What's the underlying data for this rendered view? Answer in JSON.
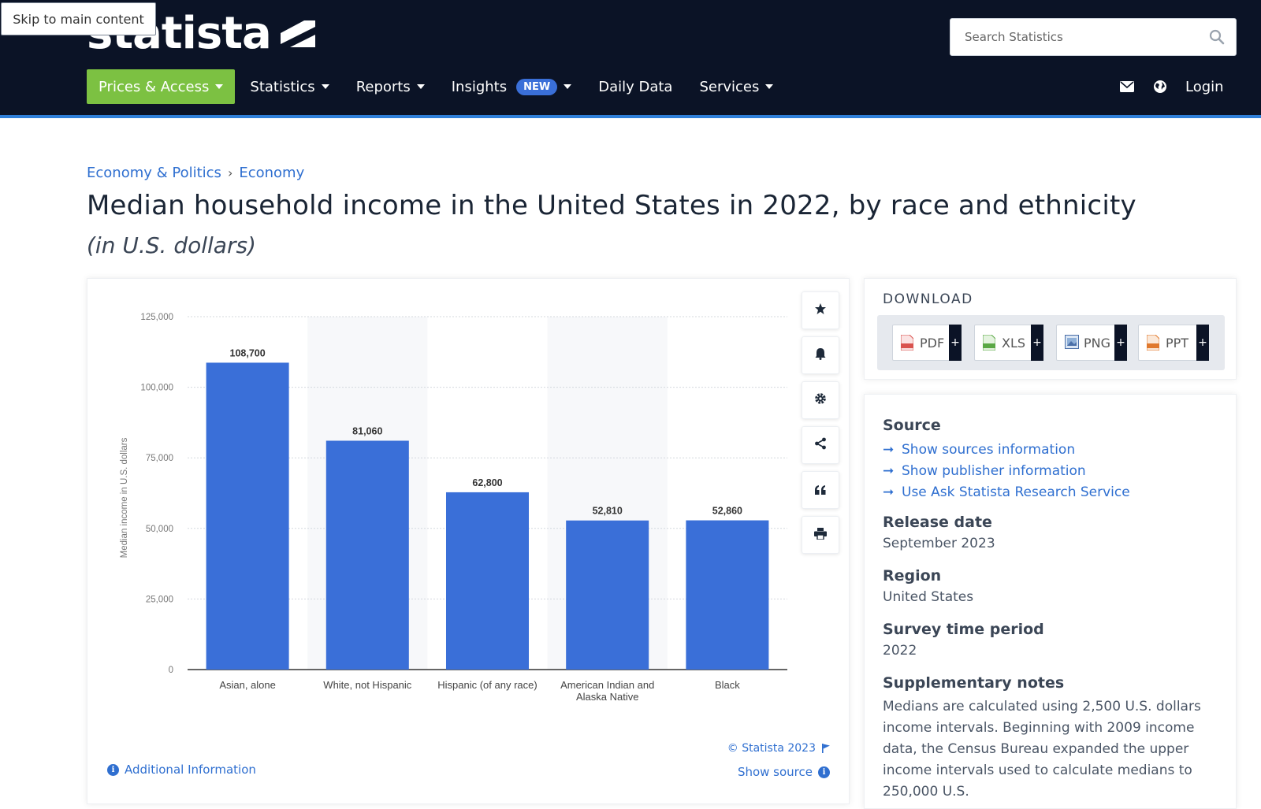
{
  "skip_link": "Skip to main content",
  "logo_text": "statista",
  "search": {
    "placeholder": "Search Statistics"
  },
  "nav": {
    "items": [
      {
        "label": "Prices & Access",
        "has_caret": true
      },
      {
        "label": "Statistics",
        "has_caret": true
      },
      {
        "label": "Reports",
        "has_caret": true
      },
      {
        "label": "Insights",
        "badge": "NEW",
        "has_caret": true
      },
      {
        "label": "Daily Data",
        "has_caret": false
      },
      {
        "label": "Services",
        "has_caret": true
      }
    ],
    "login": "Login"
  },
  "breadcrumb": [
    "Economy & Politics",
    "Economy"
  ],
  "title": "Median household income in the United States in 2022, by race and ethnicity",
  "subtitle": "(in U.S. dollars)",
  "colors": {
    "header_bg": "#0b1326",
    "accent_green": "#7cc142",
    "bar_blue": "#3a6fd8",
    "link_blue": "#2f6fd0"
  },
  "chart_data": {
    "type": "bar",
    "categories": [
      "Asian, alone",
      "White, not Hispanic",
      "Hispanic (of any race)",
      "American Indian and Alaska Native",
      "Black"
    ],
    "values": [
      108700,
      81060,
      62800,
      52810,
      52860
    ],
    "value_labels": [
      "108,700",
      "81,060",
      "62,800",
      "52,810",
      "52,860"
    ],
    "ylabel": "Median income in U.S. dollars",
    "xlabel": "",
    "ylim": [
      0,
      125000
    ],
    "yticks": [
      0,
      25000,
      50000,
      75000,
      100000,
      125000
    ],
    "ytick_labels": [
      "0",
      "25,000",
      "50,000",
      "75,000",
      "100,000",
      "125,000"
    ],
    "grid": true
  },
  "chart_tools": [
    "star-icon",
    "bell-icon",
    "gear-icon",
    "share-icon",
    "quote-icon",
    "print-icon"
  ],
  "chart_footer": {
    "copyright": "© Statista 2023",
    "show_source": "Show source",
    "additional_info": "Additional Information"
  },
  "download": {
    "title": "DOWNLOAD",
    "formats": [
      "PDF",
      "XLS",
      "PNG",
      "PPT"
    ]
  },
  "meta": {
    "source_heading": "Source",
    "source_links": [
      "Show sources information",
      "Show publisher information",
      "Use Ask Statista Research Service"
    ],
    "release_heading": "Release date",
    "release_value": "September 2023",
    "region_heading": "Region",
    "region_value": "United States",
    "survey_heading": "Survey time period",
    "survey_value": "2022",
    "notes_heading": "Supplementary notes",
    "notes_value": "Medians are calculated using 2,500 U.S. dollars income intervals. Beginning with 2009 income data, the Census Bureau expanded the upper income intervals used to calculate medians to 250,000 U.S."
  }
}
